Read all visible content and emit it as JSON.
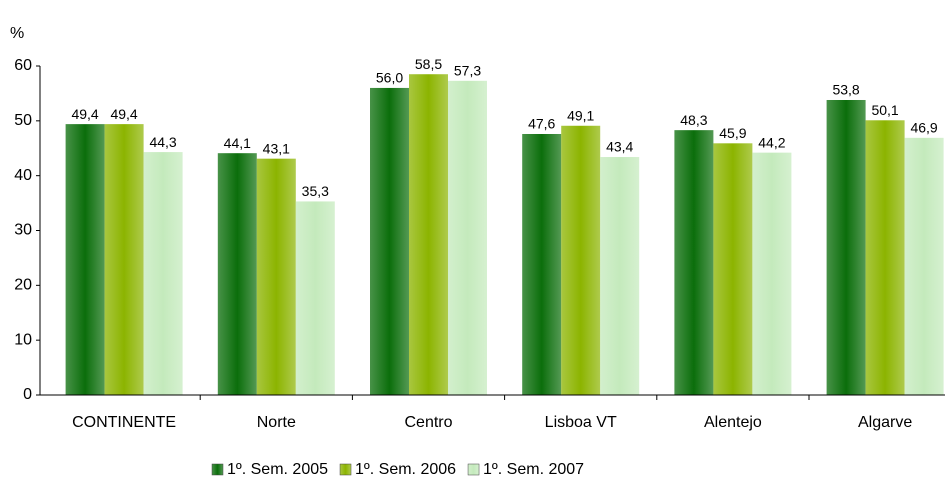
{
  "chart_data": {
    "type": "bar",
    "y_label": "%",
    "categories": [
      "CONTINENTE",
      "Norte",
      "Centro",
      "Lisboa VT",
      "Alentejo",
      "Algarve"
    ],
    "series": [
      {
        "name": "1º. Sem. 2005",
        "color": "#0b6e0b",
        "values": [
          49.4,
          44.1,
          56.0,
          47.6,
          48.3,
          53.8
        ],
        "value_labels": [
          "49,4",
          "44,1",
          "56,0",
          "47,6",
          "48,3",
          "53,8"
        ]
      },
      {
        "name": "1º. Sem. 2006",
        "color": "#8cb400",
        "values": [
          49.4,
          43.1,
          58.5,
          49.1,
          45.9,
          50.1
        ],
        "value_labels": [
          "49,4",
          "43,1",
          "58,5",
          "49,1",
          "45,9",
          "50,1"
        ]
      },
      {
        "name": "1º. Sem. 2007",
        "color": "#c4eabc",
        "values": [
          44.3,
          35.3,
          57.3,
          43.4,
          44.2,
          46.9
        ],
        "value_labels": [
          "44,3",
          "35,3",
          "57,3",
          "43,4",
          "44,2",
          "46,9"
        ]
      }
    ],
    "ylim": [
      0,
      60
    ],
    "yticks": [
      0,
      10,
      20,
      30,
      40,
      50,
      60
    ],
    "legend": "bottom"
  }
}
